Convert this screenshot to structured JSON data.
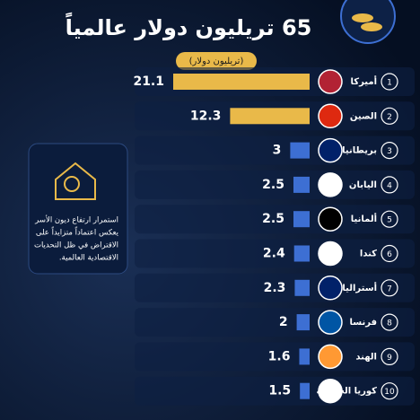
{
  "chart_data": {
    "type": "hbar",
    "title": "65 تريليون دولار عالمياً",
    "unit_label": "(تريليون دولار)",
    "note": [
      "استمرار ارتفاع ديون الأسر",
      "يعكس اعتماداً متزايداً على",
      "الاقتراض في ظل التحديات",
      "الاقتصادية العالمية."
    ],
    "ranks": [
      "1",
      "2",
      "3",
      "4",
      "5",
      "6",
      "7",
      "8",
      "9",
      "10"
    ],
    "categories": [
      "أميركا",
      "الصين",
      "بريطانيا",
      "اليابان",
      "ألمانيا",
      "كندا",
      "أستراليا",
      "فرنسا",
      "الهند",
      "كوريا الجنوبية"
    ],
    "values": [
      21.1,
      12.3,
      3,
      2.5,
      2.5,
      2.4,
      2.3,
      2,
      1.6,
      1.5
    ],
    "colors": [
      "#e9b949",
      "#e9b949",
      "#3d6fd3",
      "#3d6fd3",
      "#3d6fd3",
      "#3d6fd3",
      "#3d6fd3",
      "#3d6fd3",
      "#3d6fd3",
      "#3d6fd3"
    ]
  }
}
